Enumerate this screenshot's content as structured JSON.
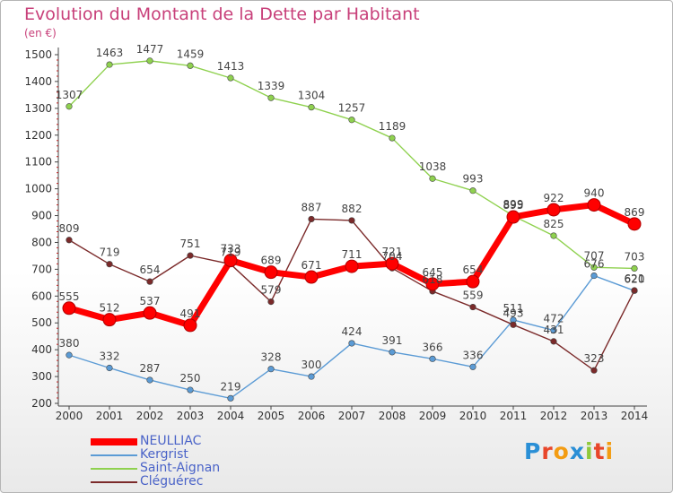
{
  "title": "Evolution du Montant de la Dette par Habitant",
  "unit": "(en €)",
  "brand": "Proxiti",
  "chart_data": {
    "type": "line",
    "x": [
      "2000",
      "2001",
      "2002",
      "2003",
      "2004",
      "2005",
      "2006",
      "2007",
      "2008",
      "2009",
      "2010",
      "2011",
      "2012",
      "2013",
      "2014"
    ],
    "ylim": [
      200,
      1500
    ],
    "yticks": [
      200,
      300,
      400,
      500,
      600,
      700,
      800,
      900,
      1000,
      1100,
      1200,
      1300,
      1400,
      1500
    ],
    "grid": false,
    "legend_position": "bottom-left",
    "series": [
      {
        "name": "NEULLIAC",
        "color": "#ff0000",
        "values": [
          555,
          512,
          537,
          491,
          733,
          689,
          671,
          711,
          721,
          645,
          654,
          895,
          922,
          940,
          869
        ]
      },
      {
        "name": "Kergrist",
        "color": "#5b9bd5",
        "values": [
          380,
          332,
          287,
          250,
          219,
          328,
          300,
          424,
          391,
          366,
          336,
          511,
          472,
          676,
          620
        ]
      },
      {
        "name": "Saint-Aignan",
        "color": "#8fd14f",
        "values": [
          1307,
          1463,
          1477,
          1459,
          1413,
          1339,
          1304,
          1257,
          1189,
          1038,
          993,
          899,
          825,
          707,
          703
        ]
      },
      {
        "name": "Cléguérec",
        "color": "#7b2a2a",
        "values": [
          809,
          719,
          654,
          751,
          719,
          579,
          887,
          882,
          704,
          618,
          559,
          493,
          431,
          323,
          621
        ]
      }
    ]
  }
}
